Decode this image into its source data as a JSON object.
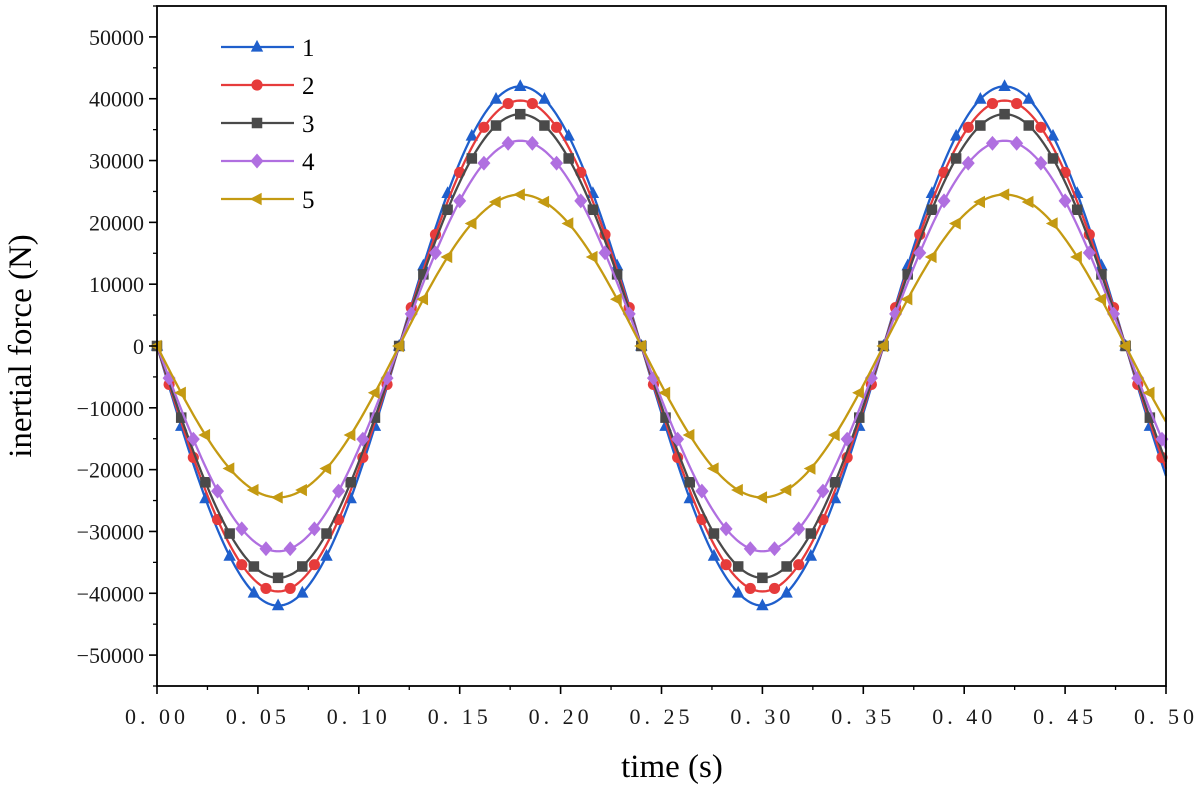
{
  "chart_data": {
    "type": "line",
    "title": "",
    "xlabel": "time (s)",
    "ylabel": "inertial force (N)",
    "xlim": [
      0,
      0.5
    ],
    "ylim": [
      -55000,
      55000
    ],
    "xticks": [
      0,
      0.05,
      0.1,
      0.15,
      0.2,
      0.25,
      0.3,
      0.35,
      0.4,
      0.45,
      0.5
    ],
    "xtick_labels": [
      "0. 00",
      "0. 05",
      "0. 10",
      "0. 15",
      "0. 20",
      "0. 25",
      "0. 30",
      "0. 35",
      "0. 40",
      "0. 45",
      "0. 50"
    ],
    "yticks": [
      -50000,
      -40000,
      -30000,
      -20000,
      -10000,
      0,
      10000,
      20000,
      30000,
      40000,
      50000
    ],
    "ytick_labels": [
      "−50000",
      "−40000",
      "−30000",
      "−20000",
      "−10000",
      "0",
      "10000",
      "20000",
      "30000",
      "40000",
      "50000"
    ],
    "grid": false,
    "legend_position": "top-left",
    "period_s": 0.24,
    "peak_times_s": [
      0.18,
      0.42
    ],
    "trough_times_s": [
      0.06,
      0.3
    ],
    "marker_spacing_s": 0.012,
    "series": [
      {
        "name": "1",
        "amplitude": 42000,
        "color": "#1f5fcc",
        "marker": "triangle-up"
      },
      {
        "name": "2",
        "amplitude": 39700,
        "color": "#e63b3b",
        "marker": "circle"
      },
      {
        "name": "3",
        "amplitude": 37500,
        "color": "#4a4a4a",
        "marker": "square"
      },
      {
        "name": "4",
        "amplitude": 33200,
        "color": "#b06fe0",
        "marker": "diamond"
      },
      {
        "name": "5",
        "amplitude": 24500,
        "color": "#c49a12",
        "marker": "triangle-left"
      }
    ]
  }
}
